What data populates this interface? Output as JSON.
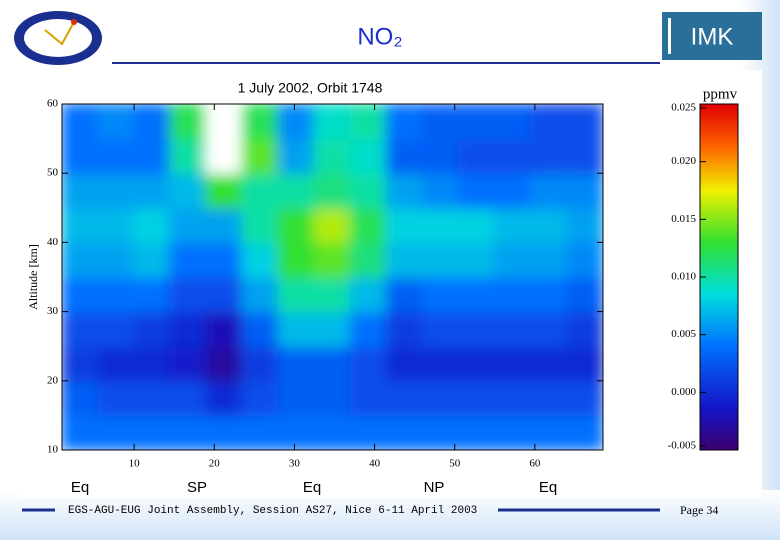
{
  "header": {
    "title": "NO₂",
    "logo_text": "IMK"
  },
  "chart_data": {
    "type": "heatmap",
    "title": "1 July 2002, Orbit 1748",
    "y_label": "Altitude [km]",
    "x_bins": [
      1,
      5.5,
      10,
      14.5,
      19,
      23.5,
      28,
      32.5,
      37,
      41.5,
      46,
      50.5,
      55,
      59.5,
      64,
      68.5
    ],
    "y_bins": [
      10,
      15,
      20,
      25,
      30,
      35,
      40,
      45,
      50,
      55,
      60
    ],
    "values": [
      [
        0.004,
        0.004,
        0.004,
        0.004,
        0.004,
        0.004,
        0.004,
        0.004,
        0.004,
        0.004,
        0.004,
        0.004,
        0.004,
        0.004,
        0.004
      ],
      [
        0.003,
        0.002,
        0.002,
        0.002,
        0.0,
        0.002,
        0.003,
        0.003,
        0.002,
        0.002,
        0.002,
        0.002,
        0.002,
        0.002,
        0.002
      ],
      [
        0.001,
        0.0,
        0.0,
        -0.001,
        -0.003,
        0.001,
        0.003,
        0.003,
        0.002,
        0.0,
        0.0,
        0.0,
        0.0,
        0.0,
        0.0
      ],
      [
        0.002,
        0.002,
        0.001,
        0.0,
        -0.002,
        0.003,
        0.007,
        0.007,
        0.004,
        0.001,
        0.002,
        0.002,
        0.002,
        0.002,
        0.001
      ],
      [
        0.004,
        0.004,
        0.004,
        0.002,
        0.002,
        0.006,
        0.01,
        0.01,
        0.007,
        0.003,
        0.004,
        0.004,
        0.004,
        0.004,
        0.003
      ],
      [
        0.006,
        0.006,
        0.007,
        0.004,
        0.004,
        0.008,
        0.013,
        0.014,
        0.011,
        0.007,
        0.007,
        0.007,
        0.006,
        0.006,
        0.005
      ],
      [
        0.007,
        0.007,
        0.008,
        0.006,
        0.006,
        0.01,
        0.013,
        0.016,
        0.012,
        0.008,
        0.008,
        0.008,
        0.007,
        0.007,
        0.006
      ],
      [
        0.006,
        0.006,
        0.006,
        0.007,
        0.013,
        0.01,
        0.01,
        0.011,
        0.01,
        0.006,
        0.005,
        0.004,
        0.004,
        0.005,
        0.005
      ],
      [
        0.004,
        0.004,
        0.004,
        0.01,
        0.03,
        0.014,
        0.006,
        0.01,
        0.009,
        0.003,
        0.003,
        0.002,
        0.002,
        0.002,
        0.002
      ],
      [
        0.004,
        0.005,
        0.004,
        0.012,
        0.03,
        0.012,
        0.005,
        0.009,
        0.01,
        0.004,
        0.003,
        0.003,
        0.003,
        0.002,
        0.002
      ]
    ],
    "xlim": [
      1,
      68.5
    ],
    "ylim": [
      10,
      60
    ],
    "xticks": [
      10,
      20,
      30,
      40,
      50,
      60
    ],
    "yticks": [
      10,
      20,
      30,
      40,
      50,
      60
    ],
    "colorbar_label": "ppmv",
    "clim": [
      -0.005,
      0.025
    ],
    "cticks": [
      {
        "value": -0.005,
        "label": "-0.005"
      },
      {
        "value": 0,
        "label": "0.000"
      },
      {
        "value": 0.005,
        "label": "0.005"
      },
      {
        "value": 0.01,
        "label": "0.010"
      },
      {
        "value": 0.015,
        "label": "0.015"
      },
      {
        "value": 0.02,
        "label": "0.020"
      },
      0.025
    ],
    "region_labels": [
      "Eq",
      "SP",
      "Eq",
      "NP",
      "Eq"
    ]
  },
  "footer": {
    "text": "EGS-AGU-EUG Joint Assembly, Session AS27, Nice 6-11 April 2003",
    "page": "Page 34"
  }
}
